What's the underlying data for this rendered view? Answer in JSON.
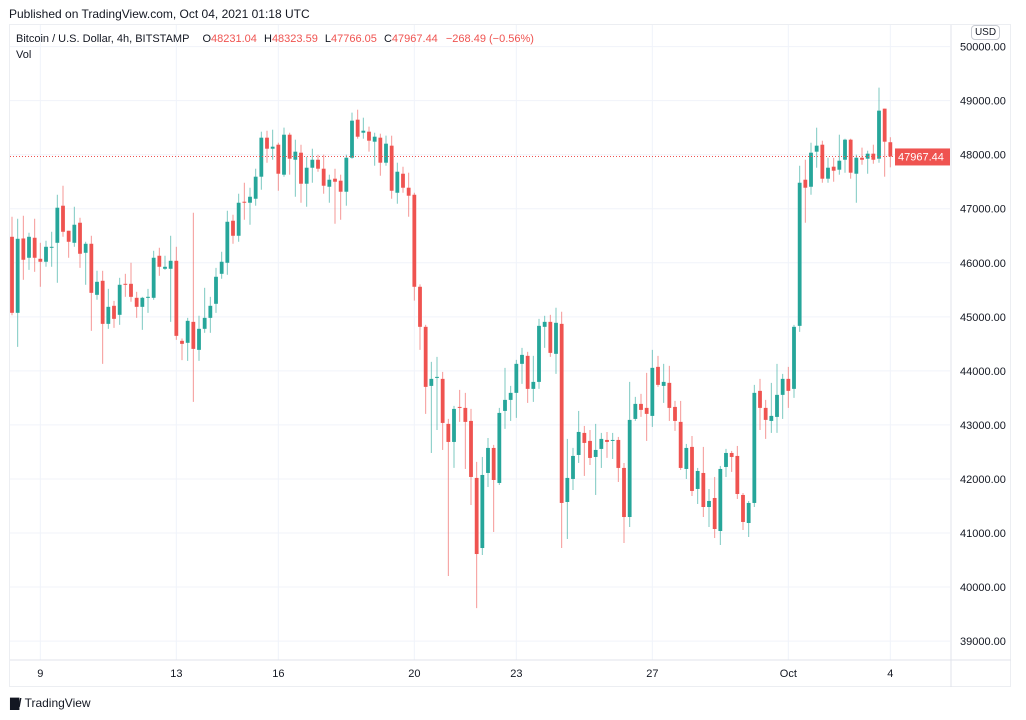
{
  "published": "Published on TradingView.com, Oct 04, 2021 01:18 UTC",
  "legend": {
    "symbol": "Bitcoin / U.S. Dollar, 4h, BITSTAMP",
    "o_label": "O",
    "o": "48231.04",
    "h_label": "H",
    "h": "48323.59",
    "l_label": "L",
    "l": "47766.05",
    "c_label": "C",
    "c": "47967.44",
    "change": "−268.49 (−0.56%)",
    "vol": "Vol"
  },
  "currency": "USD",
  "footer": {
    "brand": "TradingView",
    "logo_icon": "tradingview-logo-icon"
  },
  "colors": {
    "up": "#26a69a",
    "down": "#ef5350",
    "grid": "#f0f3fa",
    "axis_text": "#131722"
  },
  "chart_data": {
    "type": "candlestick",
    "interval": "4h",
    "ylim": [
      38650,
      50400
    ],
    "grid": true,
    "last_price": 47967.44,
    "last_price_label": "47967.44",
    "y_ticks": [
      {
        "value": 39000,
        "label": "39000.00"
      },
      {
        "value": 40000,
        "label": "40000.00"
      },
      {
        "value": 41000,
        "label": "41000.00"
      },
      {
        "value": 42000,
        "label": "42000.00"
      },
      {
        "value": 43000,
        "label": "43000.00"
      },
      {
        "value": 44000,
        "label": "44000.00"
      },
      {
        "value": 45000,
        "label": "45000.00"
      },
      {
        "value": 46000,
        "label": "46000.00"
      },
      {
        "value": 47000,
        "label": "47000.00"
      },
      {
        "value": 48000,
        "label": "48000.00"
      },
      {
        "value": 49000,
        "label": "49000.00"
      },
      {
        "value": 50000,
        "label": "50000.00"
      }
    ],
    "x_ticks": [
      {
        "date": "2021-09-09 00:00",
        "label": "9"
      },
      {
        "date": "2021-09-13 00:00",
        "label": "13"
      },
      {
        "date": "2021-09-16 00:00",
        "label": "16"
      },
      {
        "date": "2021-09-20 00:00",
        "label": "20"
      },
      {
        "date": "2021-09-23 00:00",
        "label": "23"
      },
      {
        "date": "2021-09-27 00:00",
        "label": "27"
      },
      {
        "date": "2021-10-01 00:00",
        "label": "Oct"
      },
      {
        "date": "2021-10-04 00:00",
        "label": "4"
      }
    ],
    "columns": [
      "time",
      "open",
      "high",
      "low",
      "close"
    ],
    "candles": [
      [
        "2021-09-08 04:00",
        46481,
        46852,
        45030,
        45074
      ],
      [
        "2021-09-08 08:00",
        45074,
        46815,
        44444,
        46444
      ],
      [
        "2021-09-08 12:00",
        46450,
        46870,
        45685,
        46056
      ],
      [
        "2021-09-08 16:00",
        46093,
        46556,
        45870,
        46481
      ],
      [
        "2021-09-08 20:00",
        46463,
        46815,
        45833,
        46093
      ],
      [
        "2021-09-09 00:00",
        46074,
        46370,
        45556,
        46019
      ],
      [
        "2021-09-09 04:00",
        46019,
        46407,
        45926,
        46296
      ],
      [
        "2021-09-09 08:00",
        46278,
        46574,
        45926,
        46296
      ],
      [
        "2021-09-09 12:00",
        46370,
        47259,
        45630,
        47019
      ],
      [
        "2021-09-09 16:00",
        47056,
        47426,
        46481,
        46574
      ],
      [
        "2021-09-09 20:00",
        46593,
        46593,
        46093,
        46389
      ],
      [
        "2021-09-10 00:00",
        46370,
        47037,
        46296,
        46704
      ],
      [
        "2021-09-10 04:00",
        46741,
        46833,
        45907,
        46167
      ],
      [
        "2021-09-10 08:00",
        46185,
        46389,
        45593,
        46352
      ],
      [
        "2021-09-10 12:00",
        46352,
        46500,
        44741,
        45444
      ],
      [
        "2021-09-10 16:00",
        45407,
        45852,
        45315,
        45648
      ],
      [
        "2021-09-10 20:00",
        45667,
        45852,
        44130,
        44870
      ],
      [
        "2021-09-11 00:00",
        44870,
        45518,
        44778,
        45185
      ],
      [
        "2021-09-11 04:00",
        45204,
        45296,
        44796,
        44963
      ],
      [
        "2021-09-11 08:00",
        45037,
        45722,
        44852,
        45593
      ],
      [
        "2021-09-11 12:00",
        45611,
        45796,
        45370,
        45593
      ],
      [
        "2021-09-11 16:00",
        45611,
        46000,
        45278,
        45370
      ],
      [
        "2021-09-11 20:00",
        45352,
        45463,
        44981,
        45185
      ],
      [
        "2021-09-12 00:00",
        45185,
        45370,
        44759,
        45352
      ],
      [
        "2021-09-12 04:00",
        45352,
        45518,
        45074,
        45370
      ],
      [
        "2021-09-12 08:00",
        45352,
        46222,
        45315,
        46093
      ],
      [
        "2021-09-12 12:00",
        46130,
        46278,
        45759,
        45926
      ],
      [
        "2021-09-12 16:00",
        45889,
        46130,
        45870,
        45926
      ],
      [
        "2021-09-12 20:00",
        45889,
        46500,
        44907,
        46037
      ],
      [
        "2021-09-13 00:00",
        46037,
        46296,
        44574,
        44648
      ],
      [
        "2021-09-13 04:00",
        44556,
        44600,
        44200,
        44500
      ],
      [
        "2021-09-13 08:00",
        44519,
        44981,
        44185,
        44926
      ],
      [
        "2021-09-13 12:00",
        44907,
        46926,
        43426,
        44407
      ],
      [
        "2021-09-13 16:00",
        44389,
        45019,
        44185,
        44778
      ],
      [
        "2021-09-13 20:00",
        44778,
        45537,
        44704,
        44981
      ],
      [
        "2021-09-14 00:00",
        44981,
        45370,
        44704,
        45204
      ],
      [
        "2021-09-14 04:00",
        45241,
        45907,
        45074,
        45741
      ],
      [
        "2021-09-14 08:00",
        45796,
        46204,
        45704,
        46019
      ],
      [
        "2021-09-14 12:00",
        46000,
        46963,
        45778,
        46759
      ],
      [
        "2021-09-14 16:00",
        46778,
        46889,
        46352,
        46500
      ],
      [
        "2021-09-14 20:00",
        46500,
        47278,
        46389,
        47111
      ],
      [
        "2021-09-15 00:00",
        47130,
        47481,
        46796,
        47111
      ],
      [
        "2021-09-15 04:00",
        47111,
        47389,
        46704,
        47222
      ],
      [
        "2021-09-15 08:00",
        47185,
        47741,
        47056,
        47593
      ],
      [
        "2021-09-15 12:00",
        47593,
        48426,
        47352,
        48315
      ],
      [
        "2021-09-15 16:00",
        48315,
        48444,
        47852,
        48111
      ],
      [
        "2021-09-15 20:00",
        48111,
        48463,
        47907,
        48148
      ],
      [
        "2021-09-16 00:00",
        48185,
        48222,
        47333,
        47648
      ],
      [
        "2021-09-16 04:00",
        47630,
        48500,
        47593,
        48370
      ],
      [
        "2021-09-16 08:00",
        48370,
        48407,
        47630,
        47926
      ],
      [
        "2021-09-16 12:00",
        47907,
        48278,
        47222,
        48056
      ],
      [
        "2021-09-16 16:00",
        48037,
        48185,
        47111,
        47463
      ],
      [
        "2021-09-16 20:00",
        47463,
        47963,
        47037,
        47759
      ],
      [
        "2021-09-17 00:00",
        47759,
        48111,
        47481,
        47907
      ],
      [
        "2021-09-17 04:00",
        47907,
        48000,
        47685,
        47741
      ],
      [
        "2021-09-17 08:00",
        47741,
        48000,
        47278,
        47426
      ],
      [
        "2021-09-17 12:00",
        47407,
        47630,
        47111,
        47537
      ],
      [
        "2021-09-17 16:00",
        47556,
        47741,
        46722,
        47500
      ],
      [
        "2021-09-17 20:00",
        47519,
        47630,
        46796,
        47315
      ],
      [
        "2021-09-18 00:00",
        47315,
        48000,
        47056,
        47944
      ],
      [
        "2021-09-18 04:00",
        47944,
        48778,
        47926,
        48630
      ],
      [
        "2021-09-18 08:00",
        48648,
        48833,
        48296,
        48333
      ],
      [
        "2021-09-18 12:00",
        48407,
        48685,
        48296,
        48444
      ],
      [
        "2021-09-18 16:00",
        48426,
        48519,
        48056,
        48259
      ],
      [
        "2021-09-18 20:00",
        48241,
        48407,
        47796,
        48333
      ],
      [
        "2021-09-19 00:00",
        48315,
        48389,
        47611,
        47852
      ],
      [
        "2021-09-19 04:00",
        47852,
        48352,
        47796,
        48204
      ],
      [
        "2021-09-19 08:00",
        48167,
        48352,
        47185,
        47333
      ],
      [
        "2021-09-19 12:00",
        47296,
        47852,
        47093,
        47685
      ],
      [
        "2021-09-19 16:00",
        47648,
        47778,
        47296,
        47389
      ],
      [
        "2021-09-19 20:00",
        47389,
        47667,
        46852,
        47241
      ],
      [
        "2021-09-20 00:00",
        47259,
        47296,
        45300,
        45556
      ],
      [
        "2021-09-20 04:00",
        45556,
        45600,
        44389,
        44815
      ],
      [
        "2021-09-20 08:00",
        44815,
        44852,
        43204,
        43704
      ],
      [
        "2021-09-20 12:00",
        43722,
        44167,
        42481,
        43852
      ],
      [
        "2021-09-20 16:00",
        43870,
        44259,
        42907,
        43889
      ],
      [
        "2021-09-20 20:00",
        43852,
        43981,
        42537,
        43037
      ],
      [
        "2021-09-21 00:00",
        43019,
        43111,
        40204,
        42685
      ],
      [
        "2021-09-21 04:00",
        42685,
        43352,
        42204,
        43296
      ],
      [
        "2021-09-21 08:00",
        43333,
        43648,
        43056,
        43315
      ],
      [
        "2021-09-21 12:00",
        43315,
        43593,
        42185,
        43056
      ],
      [
        "2021-09-21 16:00",
        43074,
        43296,
        41519,
        42037
      ],
      [
        "2021-09-21 20:00",
        42019,
        42315,
        39611,
        40611
      ],
      [
        "2021-09-22 00:00",
        40722,
        42407,
        40593,
        42074
      ],
      [
        "2021-09-22 04:00",
        42111,
        42759,
        41852,
        42574
      ],
      [
        "2021-09-22 08:00",
        42574,
        42630,
        41019,
        41981
      ],
      [
        "2021-09-22 12:00",
        41926,
        43315,
        41889,
        43222
      ],
      [
        "2021-09-22 16:00",
        43259,
        44056,
        42926,
        43463
      ],
      [
        "2021-09-22 20:00",
        43463,
        43722,
        43074,
        43593
      ],
      [
        "2021-09-23 00:00",
        43593,
        44204,
        43130,
        44130
      ],
      [
        "2021-09-23 04:00",
        44130,
        44426,
        43759,
        44296
      ],
      [
        "2021-09-23 08:00",
        44278,
        44352,
        43407,
        43667
      ],
      [
        "2021-09-23 12:00",
        43667,
        44278,
        43426,
        43796
      ],
      [
        "2021-09-23 16:00",
        43796,
        44963,
        43667,
        44833
      ],
      [
        "2021-09-23 20:00",
        44815,
        45019,
        44426,
        44907
      ],
      [
        "2021-09-24 00:00",
        44907,
        45037,
        44259,
        44333
      ],
      [
        "2021-09-24 04:00",
        44315,
        45167,
        43944,
        44889
      ],
      [
        "2021-09-24 08:00",
        44870,
        45093,
        40722,
        41556
      ],
      [
        "2021-09-24 12:00",
        41574,
        42741,
        40889,
        42019
      ],
      [
        "2021-09-24 16:00",
        42000,
        42574,
        41796,
        42426
      ],
      [
        "2021-09-24 20:00",
        42444,
        43259,
        42296,
        42870
      ],
      [
        "2021-09-25 00:00",
        42852,
        42981,
        42056,
        42667
      ],
      [
        "2021-09-25 04:00",
        42704,
        42907,
        42259,
        42389
      ],
      [
        "2021-09-25 08:00",
        42407,
        43019,
        41704,
        42537
      ],
      [
        "2021-09-25 12:00",
        42556,
        42852,
        42204,
        42741
      ],
      [
        "2021-09-25 16:00",
        42722,
        42870,
        42389,
        42685
      ],
      [
        "2021-09-25 20:00",
        42704,
        42852,
        42370,
        42722
      ],
      [
        "2021-09-26 00:00",
        42722,
        42778,
        41944,
        42204
      ],
      [
        "2021-09-26 04:00",
        42204,
        42296,
        40815,
        41296
      ],
      [
        "2021-09-26 08:00",
        41296,
        43796,
        41111,
        43093
      ],
      [
        "2021-09-26 12:00",
        43111,
        43519,
        43074,
        43389
      ],
      [
        "2021-09-26 16:00",
        43389,
        43574,
        43148,
        43278
      ],
      [
        "2021-09-26 20:00",
        43315,
        43963,
        42704,
        43204
      ],
      [
        "2021-09-27 00:00",
        43167,
        44389,
        42963,
        44056
      ],
      [
        "2021-09-27 04:00",
        44074,
        44278,
        43704,
        43741
      ],
      [
        "2021-09-27 08:00",
        43722,
        44130,
        43407,
        43796
      ],
      [
        "2021-09-27 12:00",
        43778,
        44093,
        43074,
        43315
      ],
      [
        "2021-09-27 16:00",
        43333,
        43444,
        42889,
        43074
      ],
      [
        "2021-09-27 20:00",
        43056,
        43444,
        42167,
        42204
      ],
      [
        "2021-09-28 00:00",
        42185,
        42648,
        42000,
        42574
      ],
      [
        "2021-09-28 04:00",
        42593,
        42796,
        41685,
        41778
      ],
      [
        "2021-09-28 08:00",
        41815,
        42204,
        41537,
        42148
      ],
      [
        "2021-09-28 12:00",
        42111,
        42593,
        41296,
        41481
      ],
      [
        "2021-09-28 16:00",
        41481,
        41815,
        41111,
        41593
      ],
      [
        "2021-09-28 20:00",
        41648,
        42037,
        40907,
        41074
      ],
      [
        "2021-09-29 00:00",
        41037,
        42241,
        40778,
        42185
      ],
      [
        "2021-09-29 04:00",
        42222,
        42556,
        42037,
        42481
      ],
      [
        "2021-09-29 08:00",
        42481,
        42519,
        42130,
        42407
      ],
      [
        "2021-09-29 12:00",
        42426,
        42611,
        41630,
        41722
      ],
      [
        "2021-09-29 16:00",
        41704,
        41741,
        41056,
        41204
      ],
      [
        "2021-09-29 20:00",
        41185,
        41593,
        40926,
        41556
      ],
      [
        "2021-09-30 00:00",
        41556,
        43741,
        41481,
        43593
      ],
      [
        "2021-09-30 04:00",
        43630,
        43852,
        42907,
        43315
      ],
      [
        "2021-09-30 08:00",
        43315,
        43463,
        42741,
        43093
      ],
      [
        "2021-09-30 12:00",
        43074,
        43778,
        42852,
        43167
      ],
      [
        "2021-09-30 16:00",
        43148,
        44130,
        42852,
        43556
      ],
      [
        "2021-09-30 20:00",
        43556,
        43944,
        43111,
        43852
      ],
      [
        "2021-10-01 00:00",
        43852,
        44074,
        43315,
        43630
      ],
      [
        "2021-10-01 04:00",
        43667,
        44852,
        43500,
        44815
      ],
      [
        "2021-10-01 08:00",
        44833,
        47796,
        44722,
        47481
      ],
      [
        "2021-10-01 12:00",
        47537,
        47907,
        46741,
        47389
      ],
      [
        "2021-10-01 16:00",
        47407,
        48222,
        47259,
        48037
      ],
      [
        "2021-10-01 20:00",
        48056,
        48500,
        47759,
        48167
      ],
      [
        "2021-10-02 00:00",
        48185,
        48259,
        47481,
        47556
      ],
      [
        "2021-10-02 04:00",
        47556,
        47944,
        47481,
        47759
      ],
      [
        "2021-10-02 08:00",
        47778,
        47944,
        47500,
        47704
      ],
      [
        "2021-10-02 12:00",
        47722,
        48370,
        47630,
        47889
      ],
      [
        "2021-10-02 16:00",
        47907,
        48296,
        47667,
        48278
      ],
      [
        "2021-10-02 20:00",
        48278,
        48296,
        47556,
        47667
      ],
      [
        "2021-10-03 00:00",
        47648,
        48000,
        47111,
        47944
      ],
      [
        "2021-10-03 04:00",
        47944,
        48130,
        47815,
        47907
      ],
      [
        "2021-10-03 08:00",
        47926,
        48074,
        47648,
        48019
      ],
      [
        "2021-10-03 12:00",
        48019,
        48185,
        47833,
        47907
      ],
      [
        "2021-10-03 16:00",
        47926,
        49241,
        47852,
        48815
      ],
      [
        "2021-10-03 20:00",
        48852,
        48852,
        47593,
        48241
      ],
      [
        "2021-10-04 00:00",
        48231.04,
        48323.59,
        47766.05,
        47967.44
      ]
    ]
  }
}
